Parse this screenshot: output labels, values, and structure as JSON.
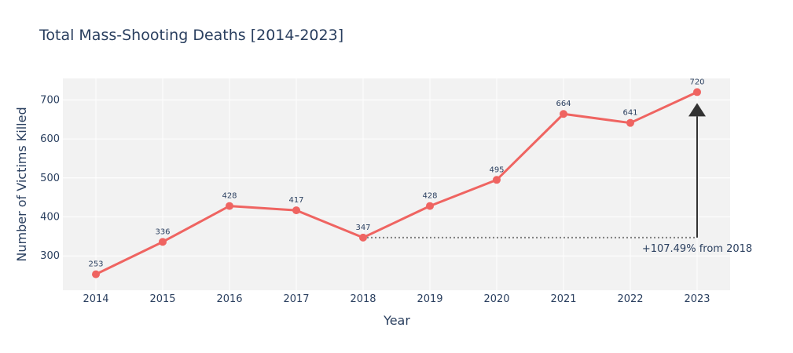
{
  "chart_data": {
    "type": "line",
    "title": "Total Mass-Shooting Deaths [2014-2023]",
    "xlabel": "Year",
    "ylabel": "Number of Victims Killed",
    "categories": [
      "2014",
      "2015",
      "2016",
      "2017",
      "2018",
      "2019",
      "2020",
      "2021",
      "2022",
      "2023"
    ],
    "values": [
      253,
      336,
      428,
      417,
      347,
      428,
      495,
      664,
      641,
      720
    ],
    "data_labels": [
      "253",
      "336",
      "428",
      "417",
      "347",
      "428",
      "495",
      "664",
      "641",
      "720"
    ],
    "yticks": [
      300,
      400,
      500,
      600,
      700
    ],
    "ytick_labels": [
      "300",
      "400",
      "500",
      "600",
      "700"
    ],
    "ylim": [
      212,
      755
    ],
    "grid": true,
    "series_color": "#ef6461",
    "plot_background": "#f2f2f2",
    "annotation": {
      "text": "+107.49% from 2018",
      "from_category": "2018",
      "to_category": "2023",
      "baseline_value": 347,
      "target_value": 720,
      "color": "#333333"
    }
  }
}
